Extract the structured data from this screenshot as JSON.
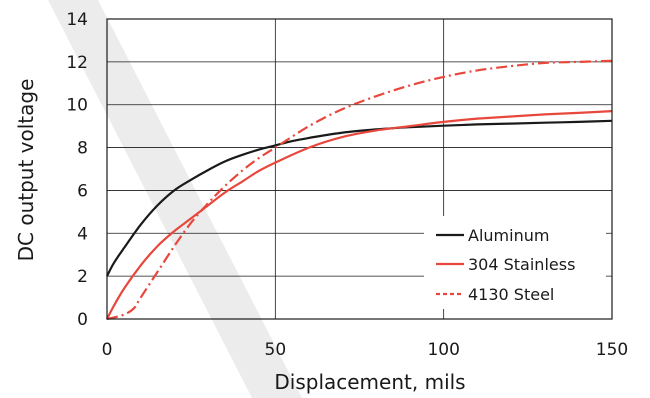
{
  "chart_data": {
    "type": "line",
    "xlabel": "Displacement, mils",
    "ylabel": "DC output voltage",
    "xlim": [
      0,
      150
    ],
    "ylim": [
      0,
      14
    ],
    "x_ticks": [
      0,
      50,
      100,
      150
    ],
    "y_ticks": [
      0,
      2,
      4,
      6,
      8,
      10,
      12,
      14
    ],
    "grid": true,
    "legend_position": "lower-right",
    "series": [
      {
        "name": "Aluminum",
        "style": "solid",
        "color": "#1a1a1a",
        "x": [
          0,
          2,
          5,
          10,
          15,
          20,
          25,
          30,
          35,
          40,
          45,
          50,
          55,
          60,
          70,
          80,
          90,
          100,
          110,
          120,
          130,
          140,
          150
        ],
        "y": [
          2.0,
          2.6,
          3.3,
          4.4,
          5.3,
          6.0,
          6.5,
          6.95,
          7.35,
          7.65,
          7.9,
          8.1,
          8.3,
          8.45,
          8.7,
          8.85,
          8.95,
          9.02,
          9.08,
          9.12,
          9.16,
          9.2,
          9.25
        ]
      },
      {
        "name": "304 Stainless",
        "style": "solid",
        "color": "#e8473c",
        "x": [
          0,
          2,
          5,
          10,
          15,
          20,
          25,
          30,
          35,
          40,
          45,
          50,
          60,
          70,
          80,
          90,
          100,
          110,
          120,
          130,
          140,
          150
        ],
        "y": [
          0.0,
          0.6,
          1.4,
          2.5,
          3.4,
          4.1,
          4.7,
          5.3,
          5.9,
          6.4,
          6.9,
          7.3,
          8.0,
          8.5,
          8.8,
          9.0,
          9.2,
          9.35,
          9.45,
          9.55,
          9.62,
          9.7
        ]
      },
      {
        "name": "4130 Steel",
        "style": "dash-dot",
        "color": "#e8473c",
        "x": [
          0,
          5,
          8,
          10,
          15,
          20,
          25,
          30,
          35,
          40,
          45,
          50,
          60,
          70,
          80,
          90,
          100,
          110,
          120,
          130,
          140,
          150
        ],
        "y": [
          0.0,
          0.2,
          0.5,
          1.0,
          2.2,
          3.4,
          4.5,
          5.4,
          6.2,
          6.9,
          7.5,
          8.0,
          9.0,
          9.8,
          10.4,
          10.9,
          11.3,
          11.6,
          11.8,
          11.95,
          12.0,
          12.05
        ]
      }
    ],
    "colors": {
      "watermark": "#ececec",
      "grid": "#1a1a1a",
      "axis": "#1a1a1a"
    }
  }
}
